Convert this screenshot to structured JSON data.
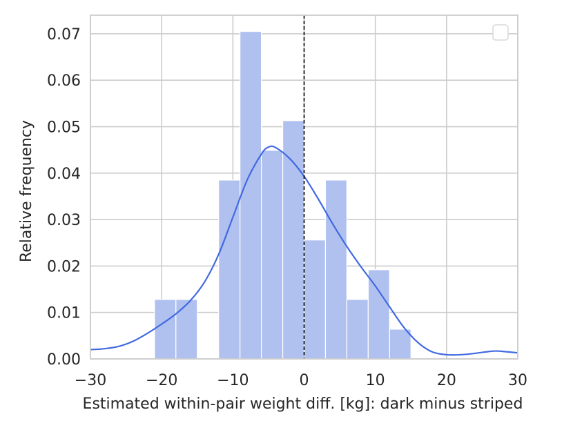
{
  "chart_data": {
    "type": "bar",
    "title": "",
    "xlabel": "Estimated within-pair weight diff. [kg]: dark minus striped",
    "ylabel": "Relative frequency",
    "xlim": [
      -30,
      30
    ],
    "ylim": [
      0,
      0.074
    ],
    "grid": true,
    "legend": {
      "placement": "top-right",
      "entries": []
    },
    "x_ticks": [
      -30,
      -20,
      -10,
      0,
      10,
      20,
      30
    ],
    "x_tick_labels": [
      "−30",
      "−20",
      "−10",
      "0",
      "10",
      "20",
      "30"
    ],
    "y_ticks": [
      0,
      0.01,
      0.02,
      0.03,
      0.04,
      0.05,
      0.06,
      0.07
    ],
    "y_tick_labels": [
      "0.00",
      "0.01",
      "0.02",
      "0.03",
      "0.04",
      "0.05",
      "0.06",
      "0.07"
    ],
    "bin_edges": [
      -21,
      -18,
      -15,
      -12,
      -9,
      -6,
      -3,
      0,
      3,
      6,
      9,
      12,
      15
    ],
    "bin_values": [
      0.0128,
      0.0128,
      0,
      0.0385,
      0.0705,
      0.0449,
      0.0513,
      0.0256,
      0.0385,
      0.0128,
      0.0192,
      0.0064
    ],
    "kde": {
      "x": [
        -30,
        -28,
        -26,
        -24,
        -22,
        -20,
        -18,
        -16,
        -14,
        -12,
        -10,
        -8,
        -6,
        -5,
        -4,
        -2,
        0,
        2,
        4,
        6,
        8,
        10,
        12,
        14,
        16,
        18,
        20,
        22,
        24,
        26,
        27,
        28,
        30
      ],
      "y": [
        0.002,
        0.0022,
        0.0027,
        0.0038,
        0.0055,
        0.0075,
        0.0097,
        0.0125,
        0.0165,
        0.0225,
        0.0305,
        0.0385,
        0.0441,
        0.0456,
        0.0455,
        0.0431,
        0.0393,
        0.0344,
        0.0291,
        0.0242,
        0.0198,
        0.0157,
        0.0112,
        0.0068,
        0.0035,
        0.0015,
        0.0009,
        0.0009,
        0.0012,
        0.0016,
        0.0017,
        0.0016,
        0.0013
      ]
    },
    "reference_line": {
      "x": 0,
      "style": "dashed"
    },
    "colors": {
      "bars": "#b0c1f0",
      "bar_edge": "#ffffff",
      "kde": "#4169e1",
      "reference": "#000000",
      "grid": "#cccccc",
      "axes": "#cccccc"
    }
  }
}
